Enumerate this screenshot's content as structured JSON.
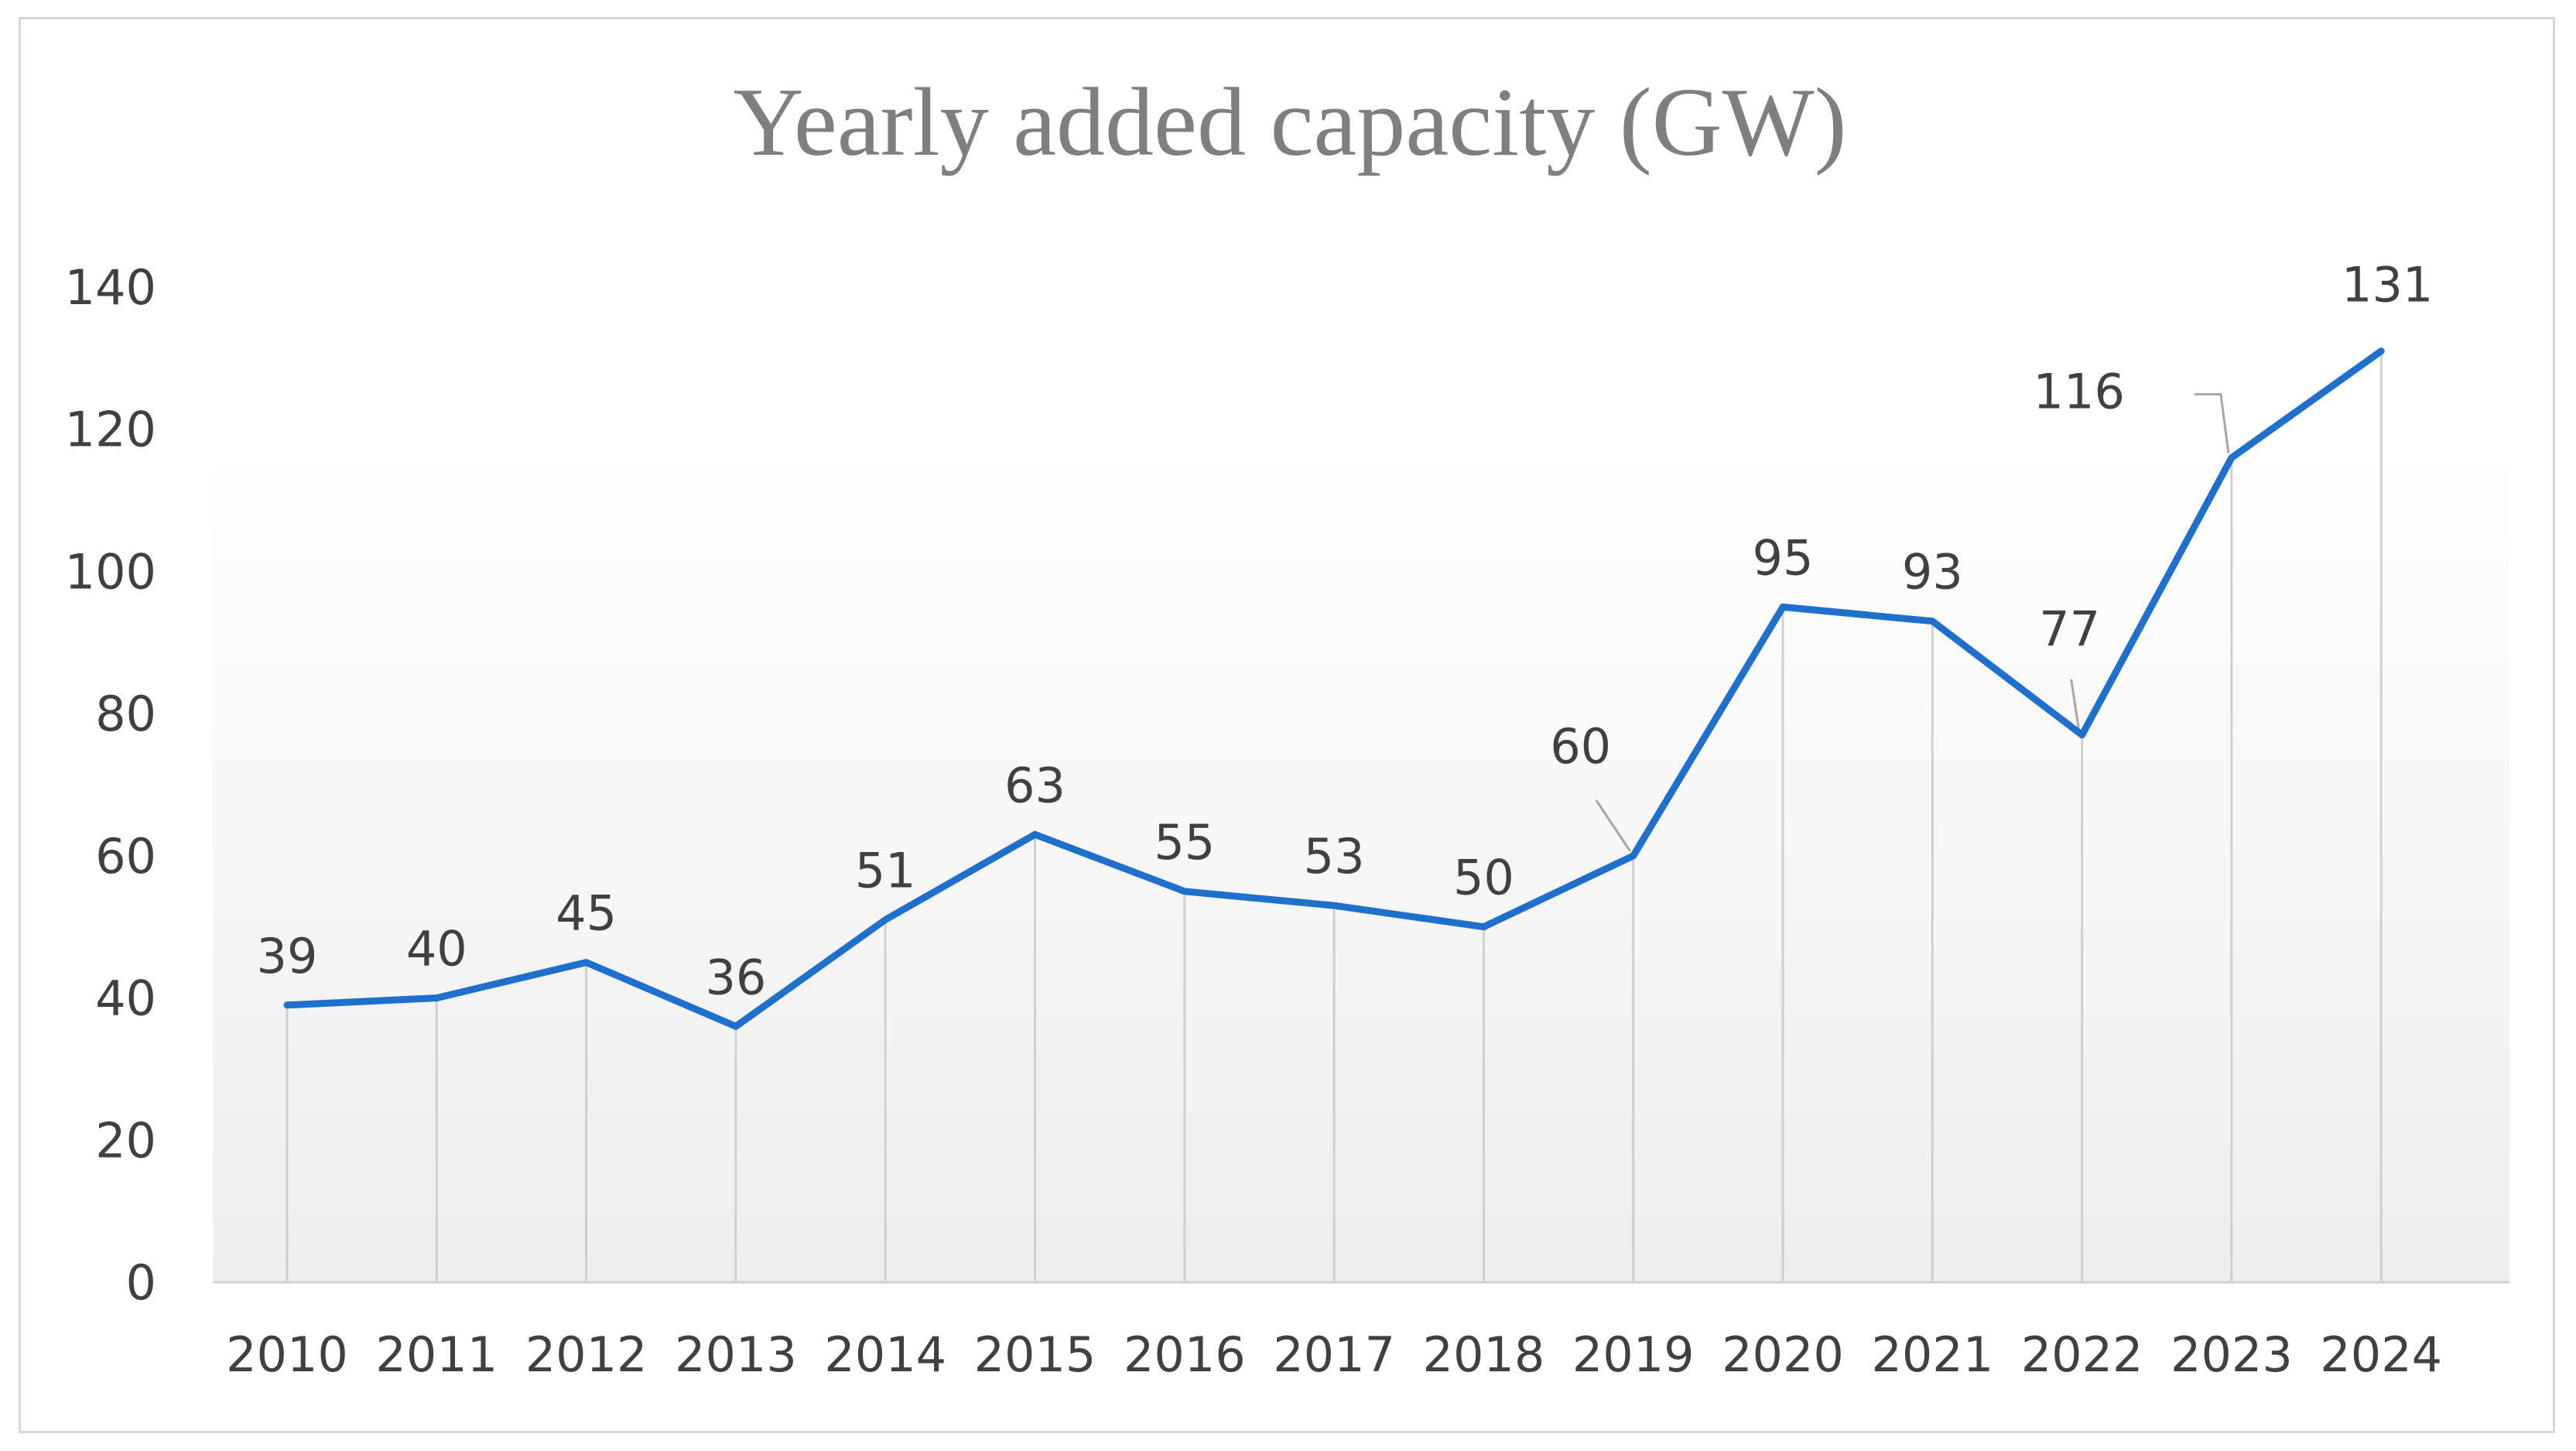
{
  "chart_data": {
    "type": "line",
    "title": "Yearly added capacity (GW)",
    "xlabel": "",
    "ylabel": "",
    "categories": [
      "2010",
      "2011",
      "2012",
      "2013",
      "2014",
      "2015",
      "2016",
      "2017",
      "2018",
      "2019",
      "2020",
      "2021",
      "2022",
      "2023",
      "2024"
    ],
    "series": [
      {
        "values": [
          39,
          40,
          45,
          36,
          51,
          63,
          55,
          53,
          50,
          60,
          95,
          93,
          77,
          116,
          131
        ]
      }
    ],
    "data_labels": [
      "39",
      "40",
      "45",
      "36",
      "51",
      "63",
      "55",
      "53",
      "50",
      "60",
      "95",
      "93",
      "77",
      "116",
      "131"
    ],
    "ylim": [
      0,
      140
    ],
    "y_ticks": [
      "0",
      "20",
      "40",
      "60",
      "80",
      "100",
      "120",
      "140"
    ],
    "grid": "vertical drop lines per category",
    "legend": "none",
    "colors": {
      "line": "#1f6fcc",
      "drop_lines": "#d0d0d0",
      "axis": "#d0d0d0",
      "text": "#404040",
      "title": "#7f7f7f"
    }
  }
}
